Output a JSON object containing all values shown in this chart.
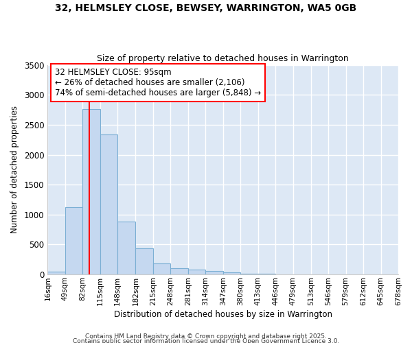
{
  "title": "32, HELMSLEY CLOSE, BEWSEY, WARRINGTON, WA5 0GB",
  "subtitle": "Size of property relative to detached houses in Warrington",
  "xlabel": "Distribution of detached houses by size in Warrington",
  "ylabel": "Number of detached properties",
  "bar_color": "#c5d8f0",
  "bar_edge_color": "#7bafd4",
  "background_color": "#dde8f5",
  "grid_color": "#ffffff",
  "annotation_text": "32 HELMSLEY CLOSE: 95sqm\n← 26% of detached houses are smaller (2,106)\n74% of semi-detached houses are larger (5,848) →",
  "property_line_x": 95,
  "bin_edges": [
    16,
    49,
    82,
    115,
    148,
    182,
    215,
    248,
    281,
    314,
    347,
    380,
    413,
    446,
    479,
    513,
    546,
    579,
    612,
    645,
    678
  ],
  "bar_heights": [
    45,
    1120,
    2760,
    2340,
    880,
    440,
    190,
    105,
    85,
    60,
    35,
    18,
    8,
    4,
    2,
    2,
    1,
    1,
    0,
    0
  ],
  "ylim": [
    0,
    3500
  ],
  "yticks": [
    0,
    500,
    1000,
    1500,
    2000,
    2500,
    3000,
    3500
  ],
  "xtick_labels": [
    "16sqm",
    "49sqm",
    "82sqm",
    "115sqm",
    "148sqm",
    "182sqm",
    "215sqm",
    "248sqm",
    "281sqm",
    "314sqm",
    "347sqm",
    "380sqm",
    "413sqm",
    "446sqm",
    "479sqm",
    "513sqm",
    "546sqm",
    "579sqm",
    "612sqm",
    "645sqm",
    "678sqm"
  ],
  "footer_line1": "Contains HM Land Registry data © Crown copyright and database right 2025.",
  "footer_line2": "Contains public sector information licensed under the Open Government Licence 3.0."
}
